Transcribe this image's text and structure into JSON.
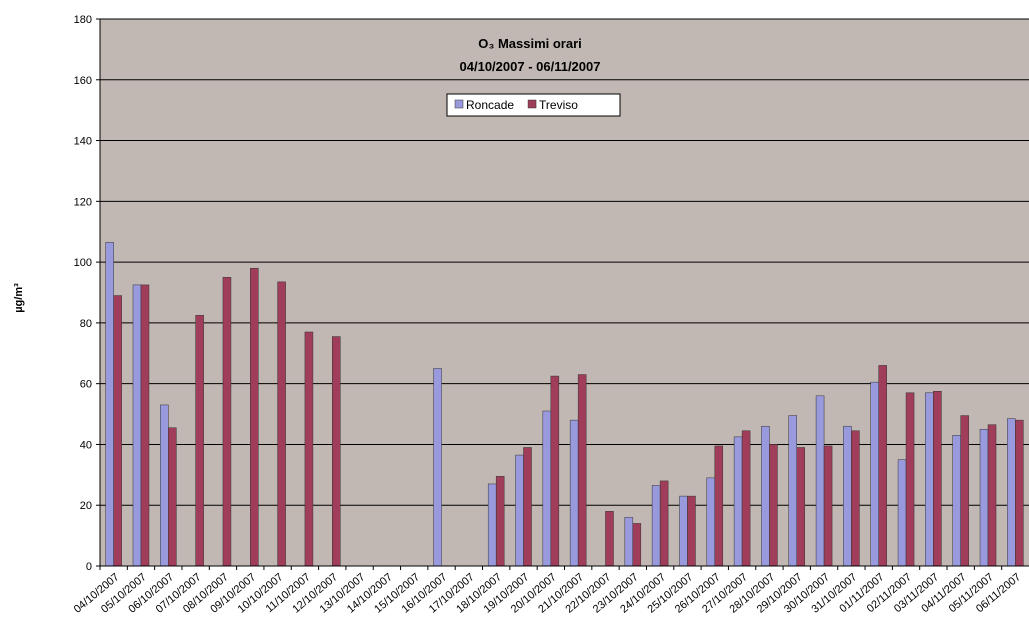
{
  "chart_data": {
    "type": "bar",
    "title": "O₃ Massimi orari",
    "subtitle": "04/10/2007 - 06/11/2007",
    "y_label": "µg/m³",
    "categories": [
      "04/10/2007",
      "05/10/2007",
      "06/10/2007",
      "07/10/2007",
      "08/10/2007",
      "09/10/2007",
      "10/10/2007",
      "11/10/2007",
      "12/10/2007",
      "13/10/2007",
      "14/10/2007",
      "15/10/2007",
      "16/10/2007",
      "17/10/2007",
      "18/10/2007",
      "19/10/2007",
      "20/10/2007",
      "21/10/2007",
      "22/10/2007",
      "23/10/2007",
      "24/10/2007",
      "25/10/2007",
      "26/10/2007",
      "27/10/2007",
      "28/10/2007",
      "29/10/2007",
      "30/10/2007",
      "31/10/2007",
      "01/11/2007",
      "02/11/2007",
      "03/11/2007",
      "04/11/2007",
      "05/11/2007",
      "06/11/2007"
    ],
    "series": [
      {
        "name": "Roncade",
        "color": "#9999dd",
        "values": [
          106.5,
          92.5,
          53,
          null,
          null,
          null,
          null,
          null,
          null,
          null,
          null,
          null,
          65,
          null,
          27,
          36.5,
          51,
          48,
          null,
          16,
          26.5,
          23,
          29,
          42.5,
          46,
          49.5,
          56,
          46,
          60.5,
          35,
          57,
          43,
          45,
          48.5
        ]
      },
      {
        "name": "Treviso",
        "color": "#a03d5a",
        "values": [
          89,
          92.5,
          45.5,
          82.5,
          95,
          98,
          93.5,
          77,
          75.5,
          null,
          null,
          null,
          null,
          null,
          29.5,
          39,
          62.5,
          63,
          18,
          14,
          28,
          23,
          39.5,
          44.5,
          40,
          39,
          39.5,
          44.5,
          66,
          57,
          57.5,
          49.5,
          46.5,
          48
        ]
      }
    ],
    "ylim": [
      0,
      180
    ],
    "yticks": [
      0,
      20,
      40,
      60,
      80,
      100,
      120,
      140,
      160,
      180
    ],
    "grid": true
  }
}
